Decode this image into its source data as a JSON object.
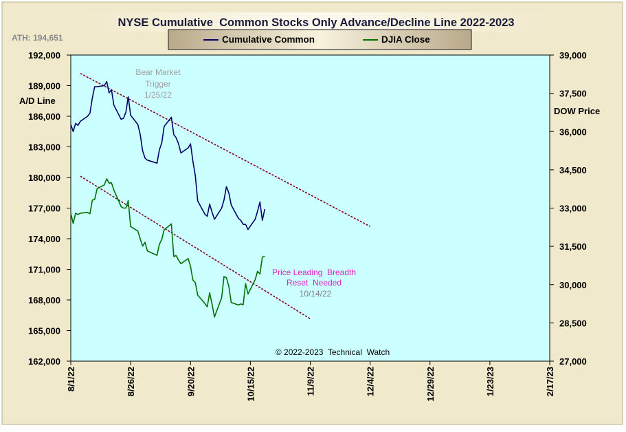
{
  "title": "NYSE Cumulative  Common Stocks Only Advance/Decline Line 2022-2023",
  "ath_label": "ATH: 194,651",
  "left_axis_label": "A/D Line",
  "right_axis_label": "DOW Price",
  "copyright": "© 2022-2023  Technical  Watch",
  "annotations": {
    "bear_line1": "Bear Market",
    "bear_line2": "Trigger",
    "bear_line3": "1/25/22",
    "lead_line1": "Price Leading  Breadth",
    "lead_line2": "Reset  Needed",
    "lead_line3": "10/14/22"
  },
  "legend": [
    {
      "label": "Cumulative Common",
      "color": "#000066"
    },
    {
      "label": "DJIA Close",
      "color": "#007000"
    }
  ],
  "colors": {
    "outer_bg": "#f1e9cc",
    "plot_bg": "#ccffff",
    "ad_line": "#000066",
    "djia_line": "#007000",
    "trend_line": "#800020",
    "bear_text": "#a0a0a0",
    "lead_text": "#e020c0"
  },
  "chart_data": {
    "type": "line",
    "title": "NYSE Cumulative  Common Stocks Only Advance/Decline Line 2022-2023",
    "x_ticks": [
      "8/1/22",
      "8/26/22",
      "9/20/22",
      "10/15/22",
      "11/9/22",
      "12/4/22",
      "12/29/22",
      "1/23/23",
      "2/17/23"
    ],
    "xlim": [
      "2022-08-01",
      "2023-02-17"
    ],
    "left_axis": {
      "label": "A/D Line",
      "ylim": [
        162000,
        192000
      ],
      "ticks": [
        "162,000",
        "165,000",
        "168,000",
        "171,000",
        "174,000",
        "177,000",
        "180,000",
        "183,000",
        "186,000",
        "189,000",
        "192,000"
      ]
    },
    "right_axis": {
      "label": "DOW Price",
      "ylim": [
        27000,
        39000
      ],
      "ticks": [
        "27,000",
        "28,500",
        "30,000",
        "31,500",
        "33,000",
        "34,500",
        "36,000",
        "37,500",
        "39,000"
      ]
    },
    "grid": false,
    "legend_position": "top-center",
    "series": [
      {
        "name": "Cumulative Common",
        "axis": "left",
        "x": [
          "2022-08-01",
          "2022-08-02",
          "2022-08-03",
          "2022-08-04",
          "2022-08-05",
          "2022-08-08",
          "2022-08-09",
          "2022-08-10",
          "2022-08-11",
          "2022-08-12",
          "2022-08-15",
          "2022-08-16",
          "2022-08-17",
          "2022-08-18",
          "2022-08-19",
          "2022-08-22",
          "2022-08-23",
          "2022-08-24",
          "2022-08-25",
          "2022-08-26",
          "2022-08-29",
          "2022-08-30",
          "2022-08-31",
          "2022-09-01",
          "2022-09-02",
          "2022-09-06",
          "2022-09-07",
          "2022-09-08",
          "2022-09-09",
          "2022-09-12",
          "2022-09-13",
          "2022-09-14",
          "2022-09-15",
          "2022-09-16",
          "2022-09-19",
          "2022-09-20",
          "2022-09-21",
          "2022-09-22",
          "2022-09-23",
          "2022-09-26",
          "2022-09-27",
          "2022-09-28",
          "2022-09-29",
          "2022-09-30",
          "2022-10-03",
          "2022-10-04",
          "2022-10-05",
          "2022-10-06",
          "2022-10-07",
          "2022-10-10",
          "2022-10-11",
          "2022-10-12",
          "2022-10-13",
          "2022-10-14",
          "2022-10-17",
          "2022-10-18",
          "2022-10-19",
          "2022-10-20",
          "2022-10-21"
        ],
        "values": [
          185200,
          184500,
          185300,
          185100,
          185500,
          186000,
          186300,
          187800,
          188900,
          188900,
          189000,
          189400,
          188300,
          188600,
          187100,
          185700,
          185800,
          186400,
          187900,
          186100,
          185200,
          184200,
          182600,
          181900,
          181700,
          181400,
          182700,
          183400,
          185000,
          185900,
          184200,
          183900,
          183300,
          182400,
          182900,
          183300,
          181600,
          180200,
          177700,
          176400,
          176200,
          177400,
          176600,
          175900,
          177000,
          177800,
          179100,
          178500,
          177300,
          176000,
          175800,
          175400,
          175400,
          174900,
          175900,
          176700,
          177600,
          175800,
          176900
        ]
      },
      {
        "name": "DJIA Close",
        "axis": "right",
        "x": [
          "2022-08-01",
          "2022-08-02",
          "2022-08-03",
          "2022-08-04",
          "2022-08-05",
          "2022-08-08",
          "2022-08-09",
          "2022-08-10",
          "2022-08-11",
          "2022-08-12",
          "2022-08-15",
          "2022-08-16",
          "2022-08-17",
          "2022-08-18",
          "2022-08-19",
          "2022-08-22",
          "2022-08-23",
          "2022-08-24",
          "2022-08-25",
          "2022-08-26",
          "2022-08-29",
          "2022-08-30",
          "2022-08-31",
          "2022-09-01",
          "2022-09-02",
          "2022-09-06",
          "2022-09-07",
          "2022-09-08",
          "2022-09-09",
          "2022-09-12",
          "2022-09-13",
          "2022-09-14",
          "2022-09-15",
          "2022-09-16",
          "2022-09-19",
          "2022-09-20",
          "2022-09-21",
          "2022-09-22",
          "2022-09-23",
          "2022-09-26",
          "2022-09-27",
          "2022-09-28",
          "2022-09-29",
          "2022-09-30",
          "2022-10-03",
          "2022-10-04",
          "2022-10-05",
          "2022-10-06",
          "2022-10-07",
          "2022-10-10",
          "2022-10-11",
          "2022-10-12",
          "2022-10-13",
          "2022-10-14",
          "2022-10-17",
          "2022-10-18",
          "2022-10-19",
          "2022-10-20",
          "2022-10-21"
        ],
        "values": [
          32800,
          32400,
          32800,
          32750,
          32800,
          32830,
          32780,
          33310,
          33340,
          33760,
          33910,
          34150,
          33980,
          33990,
          33710,
          33060,
          33000,
          33000,
          33290,
          32280,
          32100,
          31790,
          31510,
          31660,
          31320,
          31150,
          31580,
          31770,
          32150,
          32380,
          31100,
          31140,
          30960,
          30820,
          31020,
          30710,
          30180,
          30080,
          29590,
          29260,
          29130,
          29680,
          29230,
          28730,
          29490,
          30320,
          30270,
          29930,
          29300,
          29200,
          29240,
          29210,
          30040,
          29630,
          30190,
          30520,
          30420,
          31080,
          31110
        ]
      }
    ],
    "trendlines": [
      {
        "axis": "left",
        "from": [
          "2022-08-05",
          190200
        ],
        "to": [
          "2022-12-04",
          175200
        ]
      },
      {
        "axis": "right",
        "from": [
          "2022-08-05",
          34250
        ],
        "to": [
          "2022-11-09",
          28660
        ]
      }
    ]
  }
}
